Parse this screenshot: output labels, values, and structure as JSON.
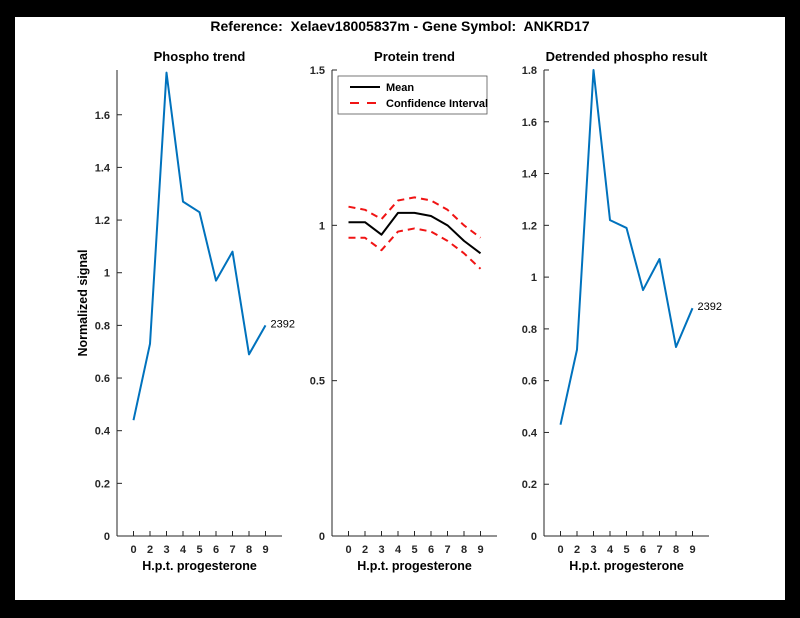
{
  "figure": {
    "title": "Reference:  Xelaev18005837m - Gene Symbol:  ANKRD17",
    "background_color": "#000000",
    "canvas_color": "#ffffff"
  },
  "colors": {
    "blue": "#0072BD",
    "red": "#F01414",
    "black": "#000000",
    "axis": "#262626"
  },
  "chart_data": [
    {
      "type": "line",
      "title": "Phospho trend",
      "xlabel": "H.p.t. progesterone",
      "ylabel": "Normalized signal",
      "x_tick_labels": [
        "0",
        "2",
        "3",
        "4",
        "5",
        "6",
        "7",
        "8",
        "9"
      ],
      "ylim": [
        0,
        1.77
      ],
      "ytick_labels": [
        "0",
        "0.2",
        "0.4",
        "0.6",
        "0.8",
        "1",
        "1.2",
        "1.4",
        "1.6"
      ],
      "grid": false,
      "legend": null,
      "series": [
        {
          "name": "Phospho signal",
          "color": "blue",
          "style": "solid",
          "values": [
            0.44,
            0.73,
            1.76,
            1.27,
            1.23,
            0.97,
            1.08,
            0.69,
            0.8
          ]
        }
      ],
      "annotation": {
        "text": "2392",
        "series": 0,
        "point_index": 8
      }
    },
    {
      "type": "line",
      "title": "Protein trend",
      "xlabel": "H.p.t. progesterone",
      "ylabel": "",
      "x_tick_labels": [
        "0",
        "2",
        "3",
        "4",
        "5",
        "6",
        "7",
        "8",
        "9"
      ],
      "ylim": [
        0,
        1.5
      ],
      "ytick_labels": [
        "0",
        "0.5",
        "1",
        "1.5"
      ],
      "grid": false,
      "legend": {
        "position": "northwest",
        "entries": [
          {
            "label": "Mean",
            "color": "black",
            "style": "solid"
          },
          {
            "label": "Confidence Interval",
            "color": "red",
            "style": "dashed"
          }
        ]
      },
      "series": [
        {
          "name": "Mean",
          "color": "black",
          "style": "solid",
          "values": [
            1.01,
            1.01,
            0.97,
            1.04,
            1.04,
            1.03,
            1.0,
            0.95,
            0.91
          ]
        },
        {
          "name": "Confidence interval upper",
          "color": "red",
          "style": "dashed",
          "values": [
            1.06,
            1.05,
            1.02,
            1.08,
            1.09,
            1.08,
            1.05,
            1.0,
            0.96
          ]
        },
        {
          "name": "Confidence interval lower",
          "color": "red",
          "style": "dashed",
          "values": [
            0.96,
            0.96,
            0.92,
            0.98,
            0.99,
            0.98,
            0.95,
            0.91,
            0.86
          ]
        }
      ],
      "annotation": null
    },
    {
      "type": "line",
      "title": "Detrended phospho result",
      "xlabel": "H.p.t. progesterone",
      "ylabel": "",
      "x_tick_labels": [
        "0",
        "2",
        "3",
        "4",
        "5",
        "6",
        "7",
        "8",
        "9"
      ],
      "ylim": [
        0,
        1.8
      ],
      "ytick_labels": [
        "0",
        "0.2",
        "0.4",
        "0.6",
        "0.8",
        "1",
        "1.2",
        "1.4",
        "1.6",
        "1.8"
      ],
      "grid": false,
      "legend": null,
      "series": [
        {
          "name": "Detrended phospho signal",
          "color": "blue",
          "style": "solid",
          "values": [
            0.43,
            0.72,
            1.8,
            1.22,
            1.19,
            0.95,
            1.07,
            0.73,
            0.88
          ]
        }
      ],
      "annotation": {
        "text": "2392",
        "series": 0,
        "point_index": 8
      }
    }
  ]
}
